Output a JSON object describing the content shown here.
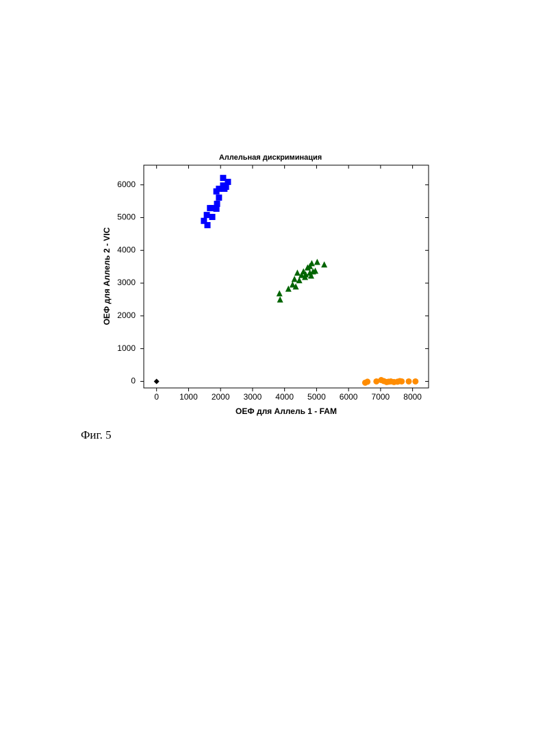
{
  "caption": "Фиг. 5",
  "chart_data": {
    "type": "scatter",
    "title": "Аллельная дискриминация",
    "xlabel": "ОЕФ для Аллель 1 - FAM",
    "ylabel": "ОЕФ для Аллель 2 - VIC",
    "xlim": [
      -400,
      8500
    ],
    "ylim": [
      -200,
      6600
    ],
    "xticks": [
      0,
      1000,
      2000,
      3000,
      4000,
      5000,
      6000,
      7000,
      8000
    ],
    "yticks": [
      0,
      1000,
      2000,
      3000,
      4000,
      5000,
      6000
    ],
    "series": [
      {
        "color": "#000000",
        "marker": "diamond",
        "x": [
          0
        ],
        "values": [
          0
        ]
      },
      {
        "color": "#0000ff",
        "marker": "square",
        "x": [
          1480,
          1570,
          1590,
          1670,
          1740,
          1740,
          1870,
          1870,
          1890,
          1950,
          1950,
          2080,
          2080,
          2170,
          2230,
          2120
        ],
        "values": [
          4900,
          5080,
          4770,
          5290,
          5290,
          5020,
          5270,
          5800,
          5420,
          5880,
          5610,
          5980,
          6210,
          5940,
          6090,
          5880
        ]
      },
      {
        "color": "#006400",
        "marker": "triangle",
        "x": [
          3840,
          3860,
          4120,
          4250,
          4310,
          4350,
          4400,
          4460,
          4530,
          4590,
          4660,
          4720,
          4790,
          4830,
          4850,
          4890,
          4960,
          5020,
          5240,
          4640,
          4790
        ],
        "values": [
          2680,
          2490,
          2820,
          2950,
          3120,
          2890,
          3310,
          3080,
          3240,
          3350,
          3260,
          3470,
          3510,
          3220,
          3600,
          3350,
          3370,
          3640,
          3560,
          3180,
          3310
        ]
      },
      {
        "color": "#ff8c00",
        "marker": "circle",
        "x": [
          6520,
          6590,
          6870,
          7020,
          7100,
          7190,
          7250,
          7320,
          7420,
          7530,
          7600,
          7660,
          7880,
          8090
        ],
        "values": [
          -40,
          -10,
          0,
          40,
          10,
          -20,
          -10,
          0,
          -20,
          -10,
          10,
          0,
          0,
          0
        ]
      }
    ]
  }
}
